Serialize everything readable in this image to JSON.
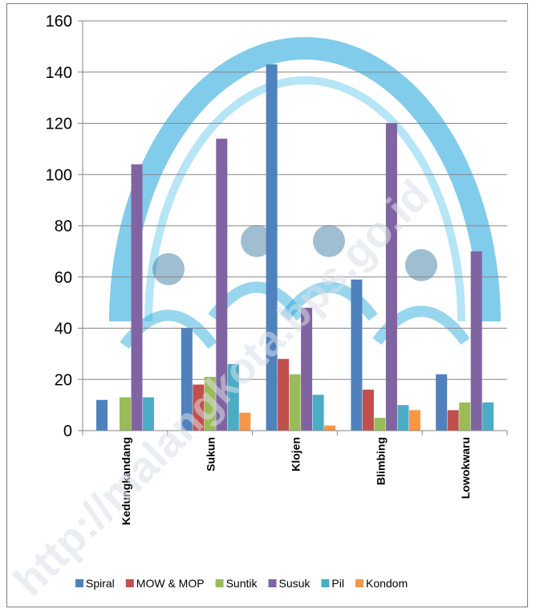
{
  "chart_data": {
    "type": "bar",
    "title": "",
    "xlabel": "",
    "ylabel": "",
    "categories": [
      "Kedungkandang",
      "Sukun",
      "Klojen",
      "Blimbing",
      "Lowokwaru"
    ],
    "series": [
      {
        "name": "Spiral",
        "color": "#4f81bd",
        "values": [
          12,
          40,
          143,
          59,
          22
        ]
      },
      {
        "name": "MOW & MOP",
        "color": "#c0504d",
        "values": [
          0,
          18,
          28,
          16,
          8
        ]
      },
      {
        "name": "Suntik",
        "color": "#9bbb59",
        "values": [
          13,
          21,
          22,
          5,
          11
        ]
      },
      {
        "name": "Susuk",
        "color": "#8064a2",
        "values": [
          104,
          114,
          48,
          120,
          70
        ]
      },
      {
        "name": "Pil",
        "color": "#4bacc6",
        "values": [
          13,
          26,
          14,
          10,
          11
        ]
      },
      {
        "name": "Kondom",
        "color": "#f79646",
        "values": [
          0,
          7,
          2,
          8,
          0
        ]
      }
    ],
    "ylim": [
      0,
      160
    ],
    "yticks": [
      0,
      20,
      40,
      60,
      80,
      100,
      120,
      140,
      160
    ],
    "grid": true,
    "legend": "bottom"
  },
  "watermark": {
    "text": "http://malangkota.bps.go.id",
    "logo_name": "bps-logo",
    "logo_color": "#1aa3d9"
  }
}
